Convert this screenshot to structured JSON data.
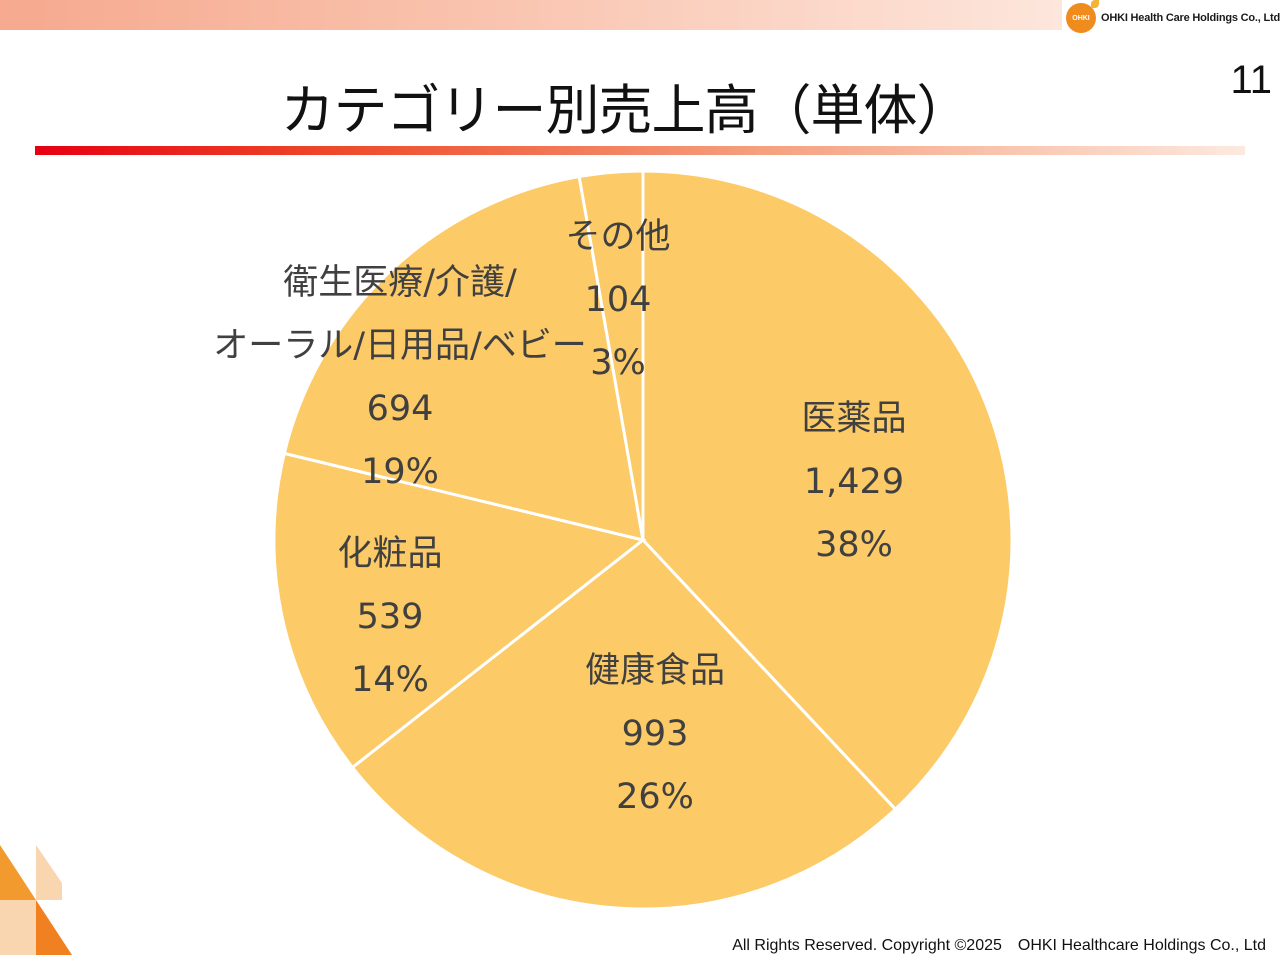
{
  "header": {
    "logo_mark": "OHKI",
    "logo_text": "OHKI Health Care Holdings Co., Ltd."
  },
  "page_number": "11",
  "title": "カテゴリー別売上高（単体）",
  "footer": "All Rights Reserved. Copyright ©2025　OHKI Healthcare Holdings Co., Ltd",
  "colors": {
    "slice_fill": "#fcca66",
    "slice_stroke": "#ffffff",
    "label_text": "#404040"
  },
  "chart_data": {
    "type": "pie",
    "title": "",
    "start_angle_deg": 0,
    "direction": "clockwise",
    "slices": [
      {
        "name": "医薬品",
        "name_lines": [
          "医薬品"
        ],
        "value": 1429,
        "value_label": "1,429",
        "percent_label": "38%"
      },
      {
        "name": "健康食品",
        "name_lines": [
          "健康食品"
        ],
        "value": 993,
        "value_label": "993",
        "percent_label": "26%"
      },
      {
        "name": "化粧品",
        "name_lines": [
          "化粧品"
        ],
        "value": 539,
        "value_label": "539",
        "percent_label": "14%"
      },
      {
        "name": "衛生医療/介護/オーラル/日用品/ベビー",
        "name_lines": [
          "衛生医療/介護/",
          "オーラル/日用品/ベビー"
        ],
        "value": 694,
        "value_label": "694",
        "percent_label": "19%"
      },
      {
        "name": "その他",
        "name_lines": [
          "その他"
        ],
        "value": 104,
        "value_label": "104",
        "percent_label": "3%"
      }
    ]
  }
}
